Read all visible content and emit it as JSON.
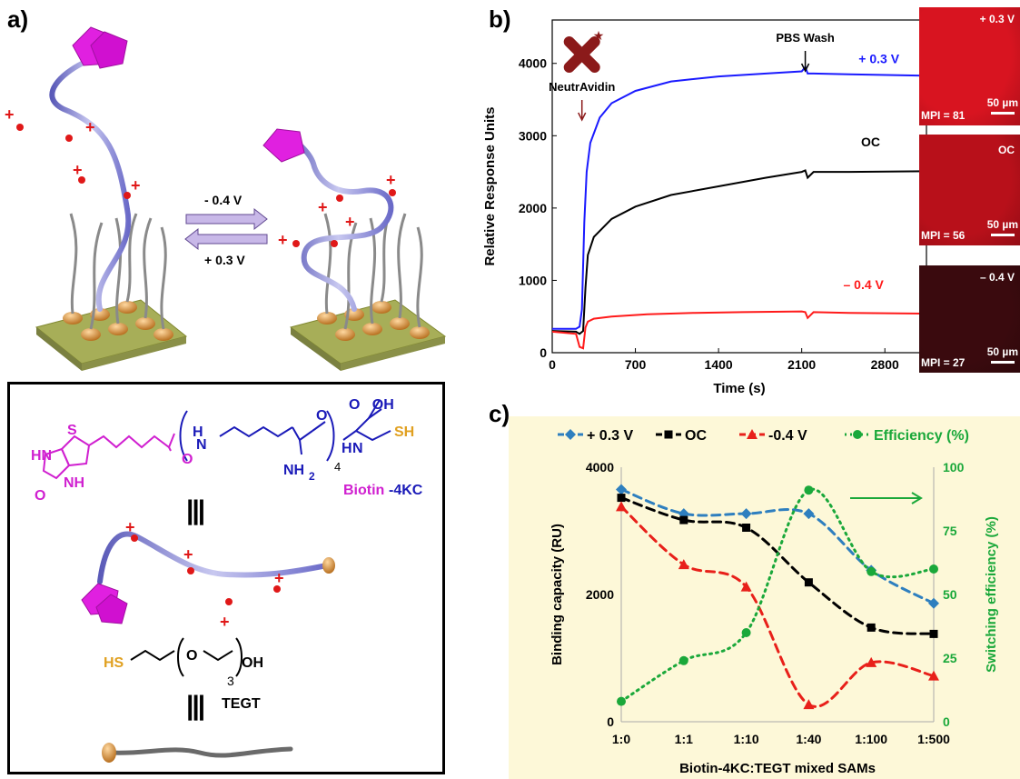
{
  "panels": {
    "a": "a)",
    "b": "b)",
    "c": "c)"
  },
  "panel_a": {
    "forward_potential": "- 0.4 V",
    "reverse_potential": "+ 0.3 V",
    "molecule_label_part1": "Biotin",
    "molecule_label_part2": "-4KC",
    "tegt_label": "TEGT",
    "identity_symbol": "|||",
    "chem": {
      "oh_top": "O   OH",
      "h1": "H",
      "h2": "H",
      "n": "N",
      "o_carbonyl": "O",
      "o_carbonyl2": "O",
      "subscript4": "4",
      "nh2": "NH",
      "nh2_sub": "2",
      "sh": "SH",
      "s_ring": "S",
      "hn": "HN",
      "nh": "NH",
      "o_ring": "O",
      "tegt_hs": "HS",
      "tegt_o": "O",
      "tegt_oh": "OH",
      "tegt_sub": "3"
    }
  },
  "panel_b": {
    "chart_data": {
      "type": "line",
      "xlabel": "Time (s)",
      "ylabel": "Relative Response Units",
      "xlim": [
        0,
        3150
      ],
      "ylim": [
        0,
        4600
      ],
      "xticks": [
        0,
        700,
        1400,
        2100,
        2800
      ],
      "yticks": [
        0,
        1000,
        2000,
        3000,
        4000
      ],
      "annotations": [
        "NeutrAvidin",
        "PBS Wash"
      ],
      "series": [
        {
          "name": "+ 0.3 V",
          "color": "#1a1aff",
          "x": [
            0,
            200,
            230,
            250,
            270,
            290,
            320,
            400,
            500,
            700,
            1000,
            1400,
            1800,
            2100,
            2130,
            2150,
            2200,
            2500,
            3150
          ],
          "y": [
            330,
            330,
            360,
            600,
            1800,
            2500,
            2900,
            3250,
            3450,
            3620,
            3750,
            3820,
            3860,
            3890,
            3950,
            3860,
            3860,
            3850,
            3830
          ]
        },
        {
          "name": "OC",
          "color": "#000000",
          "x": [
            0,
            200,
            230,
            260,
            280,
            300,
            350,
            500,
            700,
            1000,
            1400,
            1800,
            2100,
            2130,
            2150,
            2200,
            2500,
            3150
          ],
          "y": [
            300,
            290,
            260,
            300,
            900,
            1350,
            1600,
            1850,
            2020,
            2180,
            2300,
            2420,
            2500,
            2520,
            2420,
            2500,
            2500,
            2510
          ]
        },
        {
          "name": "– 0.4 V",
          "color": "#ff1a1a",
          "x": [
            0,
            200,
            230,
            260,
            280,
            300,
            350,
            500,
            800,
            1200,
            1600,
            2100,
            2130,
            2150,
            2200,
            2500,
            3150
          ],
          "y": [
            290,
            260,
            80,
            60,
            350,
            430,
            470,
            500,
            530,
            550,
            560,
            570,
            560,
            480,
            560,
            550,
            540
          ]
        }
      ]
    },
    "images": [
      {
        "label": "+ 0.3 V",
        "mpi": "MPI = 81",
        "scale": "50 µm",
        "color": "#d81420"
      },
      {
        "label": "OC",
        "mpi": "MPI = 56",
        "scale": "50 µm",
        "color": "#b8101a"
      },
      {
        "label": "– 0.4 V",
        "mpi": "MPI = 27",
        "scale": "50 µm",
        "color": "#3a0a0e"
      }
    ]
  },
  "panel_c": {
    "chart_data": {
      "type": "line",
      "xlabel": "Biotin-4KC:TEGT mixed SAMs",
      "ylabel": "Binding capacity (RU)",
      "y2label": "Switching efficiency (%)",
      "categories": [
        "1:0",
        "1:1",
        "1:10",
        "1:40",
        "1:100",
        "1:500"
      ],
      "ylim": [
        0,
        4000
      ],
      "y2lim": [
        0,
        100
      ],
      "yticks": [
        0,
        2000,
        4000
      ],
      "y2ticks": [
        0,
        25,
        50,
        75,
        100
      ],
      "legend_position": "top",
      "background": "#fdf8d8",
      "series": [
        {
          "name": "+ 0.3 V",
          "color": "#2e7fbf",
          "marker": "diamond",
          "axis": "left",
          "values": [
            3650,
            3270,
            3270,
            3270,
            2380,
            1860
          ]
        },
        {
          "name": "OC",
          "color": "#000000",
          "marker": "square",
          "axis": "left",
          "values": [
            3520,
            3170,
            3050,
            2190,
            1480,
            1380
          ]
        },
        {
          "name": "-0.4 V",
          "color": "#e8201a",
          "marker": "triangle",
          "axis": "left",
          "values": [
            3380,
            2470,
            2120,
            270,
            930,
            720
          ]
        },
        {
          "name": "Efficiency (%)",
          "color": "#1aa83a",
          "marker": "circle",
          "axis": "right",
          "values": [
            8,
            24,
            35,
            91,
            59,
            60
          ]
        }
      ]
    }
  }
}
